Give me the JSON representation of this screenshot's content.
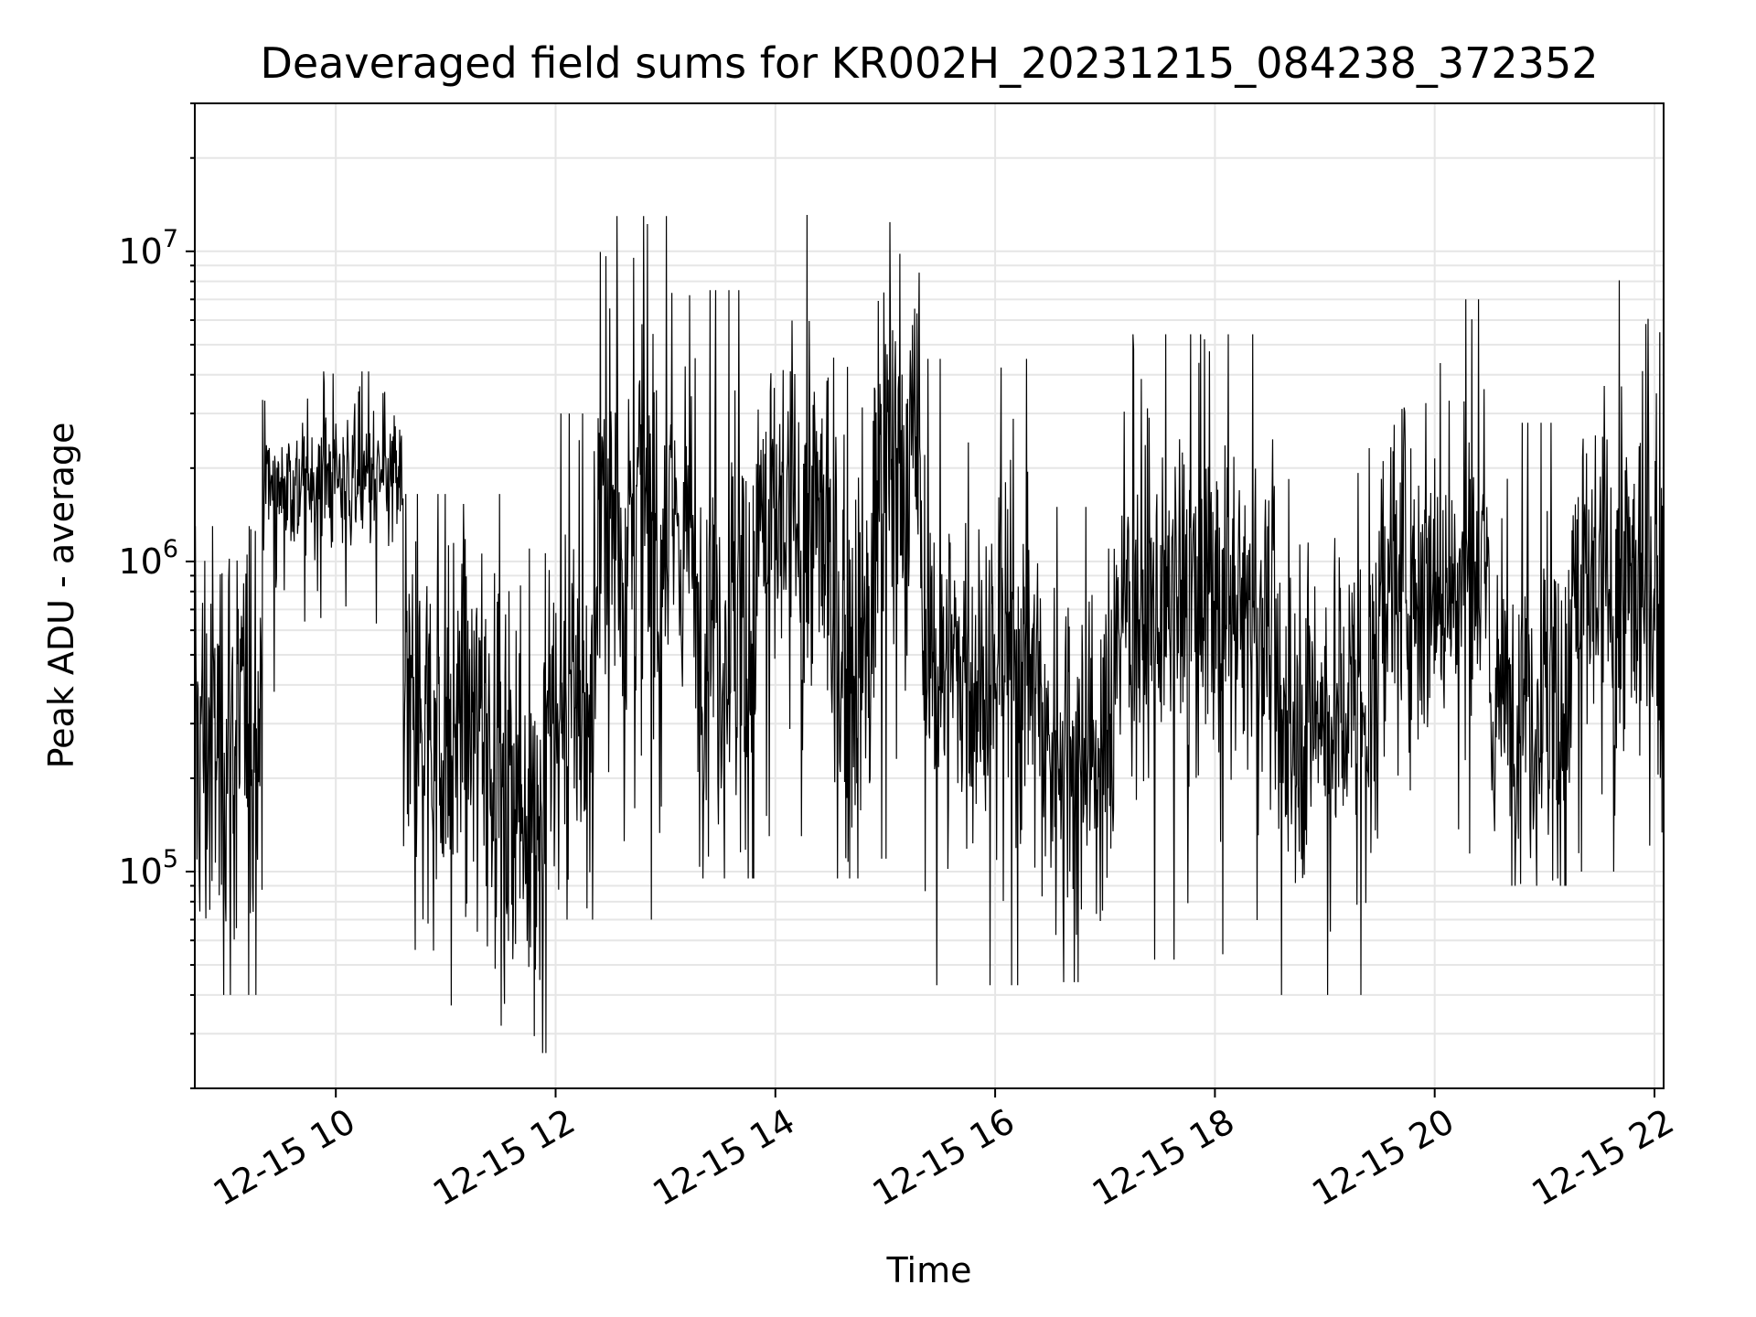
{
  "chart_data": {
    "type": "line",
    "title": "Deaveraged field sums for KR002H_20231215_084238_372352",
    "xlabel": "Time",
    "ylabel": "Peak ADU - average",
    "yscale": "log",
    "ylim": [
      20000,
      30000000
    ],
    "xlim": [
      "2023-12-15 08:43",
      "2023-12-15 22:05"
    ],
    "grid": true,
    "grid_minor_y": true,
    "line_color": "#000000",
    "grid_color": "#e6e6e6",
    "x_ticks": [
      {
        "label": "12-15 10",
        "t": "2023-12-15 10:00"
      },
      {
        "label": "12-15 12",
        "t": "2023-12-15 12:00"
      },
      {
        "label": "12-15 14",
        "t": "2023-12-15 14:00"
      },
      {
        "label": "12-15 16",
        "t": "2023-12-15 16:00"
      },
      {
        "label": "12-15 18",
        "t": "2023-12-15 18:00"
      },
      {
        "label": "12-15 20",
        "t": "2023-12-15 20:00"
      },
      {
        "label": "12-15 22",
        "t": "2023-12-15 22:00"
      }
    ],
    "y_ticks": [
      {
        "base": "10",
        "exp": "5",
        "value": 100000
      },
      {
        "base": "10",
        "exp": "6",
        "value": 1000000
      },
      {
        "base": "10",
        "exp": "7",
        "value": 10000000
      }
    ],
    "series": [
      {
        "name": "",
        "segments": [
          {
            "start": "2023-12-15 08:43",
            "end": "2023-12-15 09:20",
            "level": 260000,
            "spread": 0.55,
            "min": 40000,
            "max": 1300000
          },
          {
            "start": "2023-12-15 09:20",
            "end": "2023-12-15 10:37",
            "level": 1800000,
            "spread": 0.17,
            "min": 380000,
            "max": 4100000
          },
          {
            "start": "2023-12-15 10:37",
            "end": "2023-12-15 11:30",
            "level": 280000,
            "spread": 0.45,
            "min": 37000,
            "max": 1650000
          },
          {
            "start": "2023-12-15 11:30",
            "end": "2023-12-15 11:55",
            "level": 170000,
            "spread": 0.5,
            "min": 26000,
            "max": 1100000
          },
          {
            "start": "2023-12-15 11:55",
            "end": "2023-12-15 12:22",
            "level": 320000,
            "spread": 0.4,
            "min": 70000,
            "max": 3000000
          },
          {
            "start": "2023-12-15 12:22",
            "end": "2023-12-15 13:15",
            "level": 1300000,
            "spread": 0.5,
            "min": 70000,
            "max": 13000000
          },
          {
            "start": "2023-12-15 13:15",
            "end": "2023-12-15 13:50",
            "level": 600000,
            "spread": 0.5,
            "min": 95000,
            "max": 7500000
          },
          {
            "start": "2023-12-15 13:50",
            "end": "2023-12-15 14:30",
            "level": 1300000,
            "spread": 0.45,
            "min": 130000,
            "max": 14000000
          },
          {
            "start": "2023-12-15 14:30",
            "end": "2023-12-15 14:55",
            "level": 500000,
            "spread": 0.5,
            "min": 95000,
            "max": 8000000
          },
          {
            "start": "2023-12-15 14:55",
            "end": "2023-12-15 15:20",
            "level": 2000000,
            "spread": 0.45,
            "min": 110000,
            "max": 21000000
          },
          {
            "start": "2023-12-15 15:20",
            "end": "2023-12-15 16:25",
            "level": 450000,
            "spread": 0.4,
            "min": 43000,
            "max": 4500000
          },
          {
            "start": "2023-12-15 16:25",
            "end": "2023-12-15 17:05",
            "level": 250000,
            "spread": 0.4,
            "min": 44000,
            "max": 1500000
          },
          {
            "start": "2023-12-15 17:05",
            "end": "2023-12-15 18:30",
            "level": 700000,
            "spread": 0.4,
            "min": 52000,
            "max": 5400000
          },
          {
            "start": "2023-12-15 18:30",
            "end": "2023-12-15 19:30",
            "level": 330000,
            "spread": 0.4,
            "min": 40000,
            "max": 3500000
          },
          {
            "start": "2023-12-15 19:30",
            "end": "2023-12-15 20:30",
            "level": 900000,
            "spread": 0.4,
            "min": 90000,
            "max": 7000000
          },
          {
            "start": "2023-12-15 20:30",
            "end": "2023-12-15 21:15",
            "level": 350000,
            "spread": 0.4,
            "min": 90000,
            "max": 2800000
          },
          {
            "start": "2023-12-15 21:15",
            "end": "2023-12-15 22:05",
            "level": 800000,
            "spread": 0.45,
            "min": 100000,
            "max": 8300000
          }
        ]
      }
    ]
  }
}
